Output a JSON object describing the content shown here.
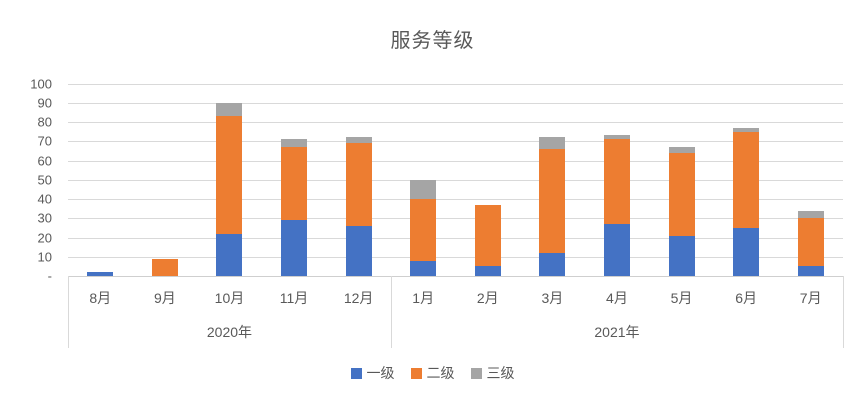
{
  "title": "服务等级",
  "colors": {
    "series_blue": "#4472C4",
    "series_orange": "#ED7D31",
    "series_gray": "#A5A5A5",
    "gridline": "#D9D9D9",
    "text": "#595959"
  },
  "chart_data": {
    "type": "bar",
    "stacked": true,
    "title": "服务等级",
    "grid": true,
    "legend_position": "bottom",
    "ylim": [
      0,
      100
    ],
    "yticks": [
      {
        "value": 100,
        "label": "100"
      },
      {
        "value": 90,
        "label": "90"
      },
      {
        "value": 80,
        "label": "80"
      },
      {
        "value": 70,
        "label": "70"
      },
      {
        "value": 60,
        "label": "60"
      },
      {
        "value": 50,
        "label": "50"
      },
      {
        "value": 40,
        "label": "40"
      },
      {
        "value": 30,
        "label": "30"
      },
      {
        "value": 20,
        "label": "20"
      },
      {
        "value": 10,
        "label": "10"
      },
      {
        "value": 0,
        "label": "-"
      }
    ],
    "categories": [
      "8月",
      "9月",
      "10月",
      "11月",
      "12月",
      "1月",
      "2月",
      "3月",
      "4月",
      "5月",
      "6月",
      "7月"
    ],
    "groups": [
      {
        "year": "2020年",
        "months": [
          "8月",
          "9月",
          "10月",
          "11月",
          "12月"
        ]
      },
      {
        "year": "2021年",
        "months": [
          "1月",
          "2月",
          "3月",
          "4月",
          "5月",
          "6月",
          "7月"
        ]
      }
    ],
    "series": [
      {
        "name": "一级",
        "color": "#4472C4",
        "values": [
          2,
          0,
          22,
          29,
          26,
          8,
          5,
          12,
          27,
          21,
          25,
          5
        ]
      },
      {
        "name": "二级",
        "color": "#ED7D31",
        "values": [
          0,
          9,
          61,
          38,
          43,
          32,
          32,
          54,
          44,
          43,
          50,
          25
        ]
      },
      {
        "name": "三级",
        "color": "#A5A5A5",
        "values": [
          0,
          0,
          7,
          4,
          3,
          10,
          0,
          6,
          2,
          3,
          2,
          4
        ]
      }
    ]
  }
}
